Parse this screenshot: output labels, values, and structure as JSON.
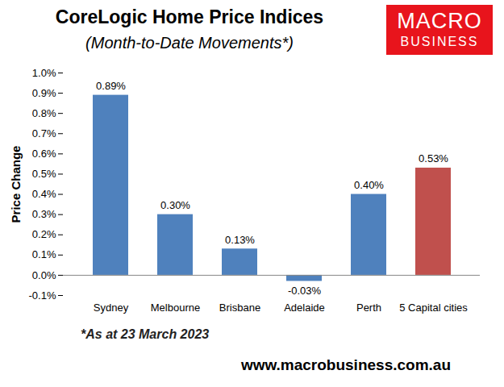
{
  "chart_data": {
    "type": "bar",
    "title": "CoreLogic Home Price Indices",
    "subtitle": "(Month-to-Date Movements*)",
    "logo": [
      "MACRO",
      "BUSINESS"
    ],
    "y_label": "Price Change",
    "categories": [
      "Sydney",
      "Melbourne",
      "Brisbane",
      "Adelaide",
      "Perth",
      "5 Capital cities"
    ],
    "values": [
      0.89,
      0.3,
      0.13,
      -0.03,
      0.4,
      0.53
    ],
    "value_labels": [
      "0.89%",
      "0.30%",
      "0.13%",
      "-0.03%",
      "0.40%",
      "0.53%"
    ],
    "colors": [
      "#4f81bd",
      "#4f81bd",
      "#4f81bd",
      "#4f81bd",
      "#4f81bd",
      "#c0504d"
    ],
    "ylim": [
      -0.1,
      1.0
    ],
    "yticks": [
      {
        "value": -0.1,
        "label": "-0.1%"
      },
      {
        "value": 0.0,
        "label": "0.0%"
      },
      {
        "value": 0.1,
        "label": "0.1%"
      },
      {
        "value": 0.2,
        "label": "0.2%"
      },
      {
        "value": 0.3,
        "label": "0.3%"
      },
      {
        "value": 0.4,
        "label": "0.4%"
      },
      {
        "value": 0.5,
        "label": "0.5%"
      },
      {
        "value": 0.6,
        "label": "0.6%"
      },
      {
        "value": 0.7,
        "label": "0.7%"
      },
      {
        "value": 0.8,
        "label": "0.8%"
      },
      {
        "value": 0.9,
        "label": "0.9%"
      },
      {
        "value": 1.0,
        "label": "1.0%"
      }
    ],
    "data_labels": true,
    "grid": false,
    "footnote": "*As at 23 March 2023",
    "source": "www.macrobusiness.com.au"
  }
}
